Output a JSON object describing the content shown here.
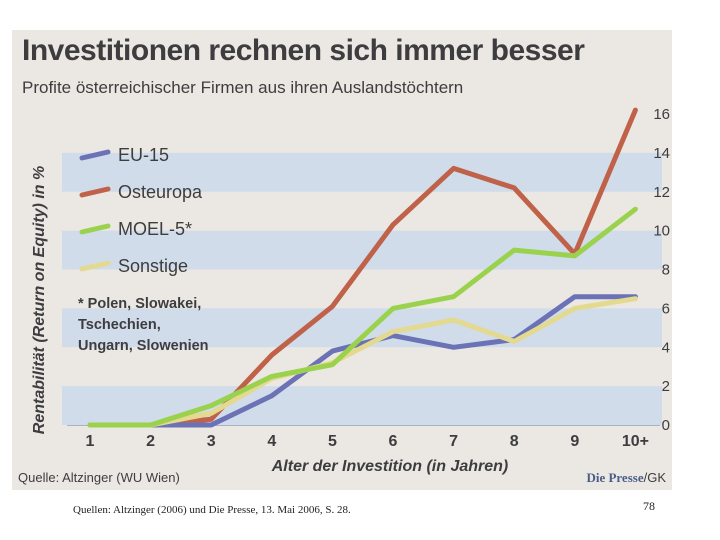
{
  "slide": {
    "caption": "Quellen: Altzinger (2006) und Die Presse, 13. Mai 2006, S. 28.",
    "number": "78"
  },
  "source": {
    "left": "Quelle: Altzinger (WU Wien)",
    "brand": "Die Presse",
    "suffix": "/GK"
  },
  "colors": {
    "background": "#ebe8e3",
    "band": "#d0dcea",
    "eu15": "#6b72b5",
    "osteuropa": "#c0614a",
    "moel5": "#9ad24e",
    "sonstige": "#e3d98f"
  },
  "chart_data": {
    "type": "line",
    "title": "Investitionen rechnen sich immer besser",
    "subtitle": "Profite österreichischer Firmen aus ihren Auslandstöchtern",
    "xlabel": "Alter der Investition (in Jahren)",
    "ylabel": "Rentabilität (Return on Equity) in %",
    "categories": [
      "1",
      "2",
      "3",
      "4",
      "5",
      "6",
      "7",
      "8",
      "9",
      "10+"
    ],
    "yticks": [
      "0",
      "2",
      "4",
      "6",
      "8",
      "10",
      "12",
      "14",
      "16"
    ],
    "ylim": [
      0,
      16
    ],
    "grid": "horizontal bands",
    "legend_position": "top-left",
    "series": [
      {
        "name": "EU-15",
        "color": "#6b72b5",
        "values": [
          0,
          0,
          0,
          1.5,
          3.8,
          4.6,
          4.0,
          4.4,
          6.6,
          6.6
        ]
      },
      {
        "name": "Osteuropa",
        "color": "#c0614a",
        "values": [
          0,
          0,
          0.3,
          3.6,
          6.1,
          10.3,
          13.2,
          12.2,
          8.8,
          16.2
        ]
      },
      {
        "name": "MOEL-5*",
        "color": "#9ad24e",
        "values": [
          0,
          0,
          1.0,
          2.5,
          3.1,
          6.0,
          6.6,
          9.0,
          8.7,
          11.1
        ]
      },
      {
        "name": "Sonstige",
        "color": "#e3d98f",
        "values": [
          0,
          0,
          0.6,
          2.4,
          3.2,
          4.8,
          5.4,
          4.3,
          6.0,
          6.5
        ]
      }
    ],
    "footnote": [
      "* Polen, Slowakei,",
      "Tschechien,",
      "Ungarn, Slowenien"
    ]
  }
}
